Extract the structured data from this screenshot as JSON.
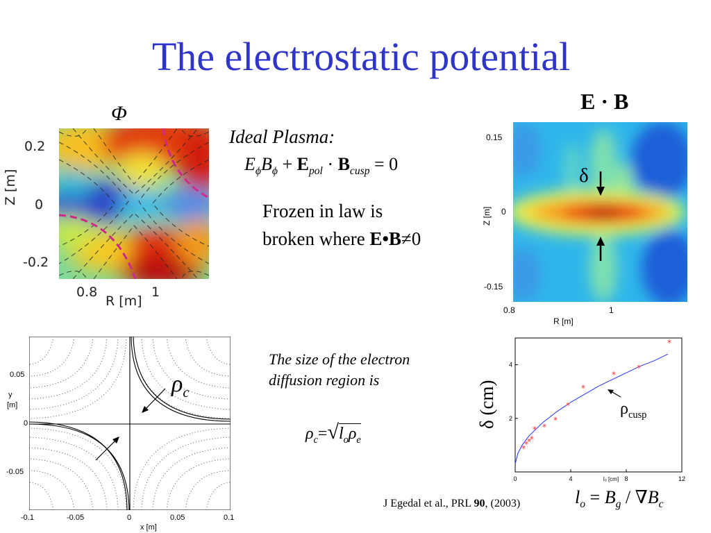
{
  "slide": {
    "title": "The electrostatic potential",
    "citation_prefix": "J Egedal et al., PRL  ",
    "citation_volume": "90",
    "citation_suffix": ", (2003)"
  },
  "phi_panel": {
    "symbol": "Φ",
    "yticks": [
      "0.2",
      "0",
      "-0.2"
    ],
    "xtick_left": "0.8",
    "xtick_right": "1",
    "xlabel": "R [m]",
    "ylabel": "Z [m]"
  },
  "ideal_plasma": {
    "heading": "Ideal Plasma:",
    "eq": {
      "E": "E",
      "sub_phi": "ϕ",
      "B": "B",
      "sub_phi2": "ϕ",
      "plus": " + ",
      "Ebold": "E",
      "sub_pol": "pol",
      "dot": " · ",
      "Bbold": "B",
      "sub_cusp": "cusp",
      "eq0": " = 0"
    }
  },
  "frozen": {
    "line1": "Frozen in law is",
    "line2_text": "broken where ",
    "line2_bold": "E•B",
    "line2_tail": "≠0"
  },
  "eb_panel": {
    "label": "E · B",
    "delta": "δ",
    "yticks": [
      "0.15",
      "0",
      "-0.15"
    ],
    "xticks": [
      "0.8",
      "1"
    ],
    "xlabel": "R [m]",
    "ylabel": "Z [m]"
  },
  "field_panel": {
    "rho": "ρ",
    "rho_sub": "c",
    "yticks": [
      "0.05",
      "0",
      "-0.05"
    ],
    "ylabel_y": "y",
    "ylabel_unit": "[m]",
    "xticks": [
      "-0.1",
      "-0.05",
      "0",
      "0.05",
      "0.1"
    ],
    "xlabel": "x [m]"
  },
  "diffusion": {
    "line1": "The size of the electron",
    "line2": "diffusion region is",
    "formula_rho": "ρ",
    "formula_sub_c": "c",
    "formula_eq": "=",
    "formula_l": "l",
    "formula_sub_o": "o",
    "formula_rho2": "ρ",
    "formula_sub_e": "e"
  },
  "scaling_panel": {
    "ylabel": "δ (cm)",
    "legend_rho": "ρ",
    "legend_sub": "cusp",
    "formula": {
      "l": "l",
      "sub_o": "o",
      "eq": " = ",
      "B": "B",
      "sub_g": "g",
      "div": " / ∇",
      "B2": "B",
      "sub_c": "c"
    }
  },
  "chart_data": [
    {
      "type": "scatter",
      "xlabel": "lₒ [cm]",
      "ylabel": "δ (cm)",
      "xlim": [
        0,
        12
      ],
      "ylim": [
        0,
        5
      ],
      "xticks": [
        "0",
        "4",
        "8",
        "12"
      ],
      "yticks": [
        "2",
        "4"
      ],
      "series": [
        {
          "values": [
            [
              0.6,
              0.9
            ],
            [
              0.8,
              1.05
            ],
            [
              1.0,
              1.15
            ],
            [
              1.2,
              1.25
            ],
            [
              1.4,
              1.6
            ],
            [
              2.1,
              1.7
            ],
            [
              2.9,
              1.95
            ],
            [
              3.8,
              2.5
            ],
            [
              4.9,
              3.15
            ],
            [
              7.1,
              3.65
            ],
            [
              8.9,
              3.9
            ],
            [
              11.1,
              4.85
            ]
          ],
          "color": "#ff2b2b"
        },
        {
          "values": [
            [
              0,
              0.3
            ],
            [
              0.2,
              0.7
            ],
            [
              0.5,
              1.0
            ],
            [
              1,
              1.35
            ],
            [
              2,
              1.85
            ],
            [
              3,
              2.25
            ],
            [
              4,
              2.6
            ],
            [
              5,
              2.9
            ],
            [
              6,
              3.2
            ],
            [
              7,
              3.45
            ],
            [
              8,
              3.7
            ],
            [
              9,
              3.95
            ],
            [
              10,
              4.15
            ],
            [
              11,
              4.4
            ]
          ],
          "color": "#2233ff"
        }
      ]
    }
  ]
}
